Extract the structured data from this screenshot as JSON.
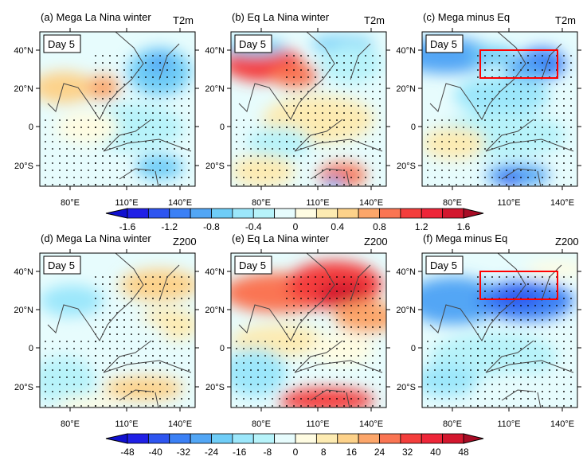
{
  "panels": [
    {
      "title": "(a) Mega La Nina winter",
      "variable": "T2m",
      "day": "Day 5",
      "box": false
    },
    {
      "title": "(b) Eq La Nina winter",
      "variable": "T2m",
      "day": "Day 5",
      "box": false
    },
    {
      "title": "(c) Mega minus Eq",
      "variable": "T2m",
      "day": "Day 5",
      "box": true
    },
    {
      "title": "(d) Mega La Nina winter",
      "variable": "Z200",
      "day": "Day 5",
      "box": false
    },
    {
      "title": "(e) Eq La Nina winter",
      "variable": "Z200",
      "day": "Day 5",
      "box": false
    },
    {
      "title": "(f) Mega minus Eq",
      "variable": "Z200",
      "day": "Day 5",
      "box": true
    }
  ],
  "axes": {
    "lat_labels": [
      "40°N",
      "20°N",
      "0",
      "20°S"
    ],
    "lon_labels": [
      "80°E",
      "110°E",
      "140°E"
    ]
  },
  "colorbars": [
    {
      "labels": [
        "-1.6",
        "-1.2",
        "-0.8",
        "-0.4",
        "0",
        "0.4",
        "0.8",
        "1.2",
        "1.6"
      ]
    },
    {
      "labels": [
        "-48",
        "-40",
        "-32",
        "-24",
        "-16",
        "-8",
        "0",
        "8",
        "16",
        "24",
        "32",
        "40",
        "48"
      ]
    }
  ],
  "colors": [
    "#1010d0",
    "#2020e6",
    "#2e55f0",
    "#3b80f5",
    "#52a6f5",
    "#6fcdf7",
    "#9ce7fb",
    "#b7f3fa",
    "#e7fcfd",
    "#fffce2",
    "#fdebb2",
    "#fdd28a",
    "#fca66a",
    "#fa7553",
    "#f43e3c",
    "#ee2639",
    "#d3172e",
    "#a80c25"
  ]
}
